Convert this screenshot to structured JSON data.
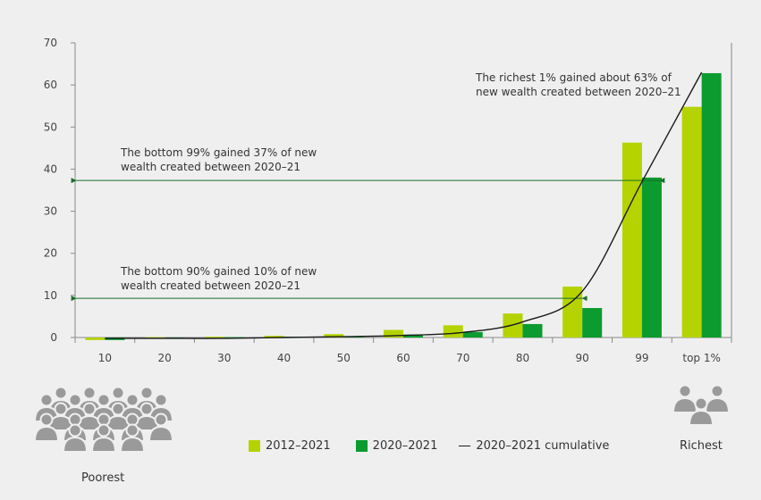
{
  "chart_data": {
    "type": "bar",
    "categories": [
      "10",
      "20",
      "30",
      "40",
      "50",
      "60",
      "70",
      "80",
      "90",
      "99",
      "top 1%"
    ],
    "series": [
      {
        "name": "2012–2021",
        "color": "#b5d300",
        "values": [
          -0.6,
          0.1,
          0.2,
          0.4,
          0.8,
          1.8,
          2.9,
          5.7,
          12.1,
          46.3,
          54.8
        ]
      },
      {
        "name": "2020–2021",
        "color": "#0b9b2f",
        "values": [
          -0.6,
          0.0,
          0.1,
          0.2,
          0.3,
          0.7,
          1.3,
          3.2,
          7.0,
          38.0,
          62.8
        ]
      }
    ],
    "cumulative": {
      "name": "2020–2021 cumulative",
      "color": "#1a1a1a",
      "values": [
        -0.2,
        -0.2,
        -0.2,
        0.0,
        0.2,
        0.5,
        1.2,
        3.7,
        11.0,
        37.0,
        63.0
      ]
    },
    "ylim": [
      0,
      70
    ],
    "yticks": [
      0,
      10,
      20,
      30,
      40,
      50,
      60,
      70
    ],
    "grid": false,
    "annotations": {
      "top": [
        "The richest 1% gained about 63% of",
        "new wealth created between 2020–21"
      ],
      "middle": [
        "The bottom 99% gained 37% of new",
        "wealth created between 2020–21"
      ],
      "bottom": [
        "The bottom 90% gained 10% of new",
        "wealth created between 2020–21"
      ]
    }
  },
  "legend": {
    "series1": "2012–2021",
    "series2": "2020–2021",
    "line": "2020–2021 cumulative"
  },
  "labels": {
    "poorest": "Poorest",
    "richest": "Richest"
  },
  "icons": {
    "poorest": "crowd-of-people-icon",
    "richest": "small-group-of-people-icon"
  }
}
